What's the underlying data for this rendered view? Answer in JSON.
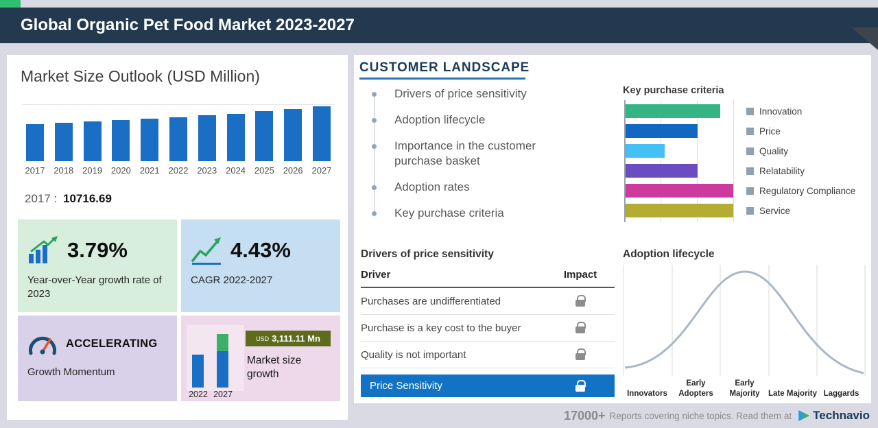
{
  "header": {
    "title": "Global Organic Pet Food Market 2023-2027"
  },
  "market_size": {
    "title": "Market Size Outlook (USD Million)",
    "base_year_label": "2017 :",
    "base_year_value": "10716.69",
    "yoy": {
      "value": "3.79%",
      "label": "Year-over-Year growth rate of 2023"
    },
    "cagr": {
      "value": "4.43%",
      "label": "CAGR 2022-2027"
    },
    "momentum": {
      "value": "ACCELERATING",
      "label": "Growth Momentum"
    },
    "growth": {
      "currency": "USD",
      "amount": "3,111.11 Mn",
      "label": "Market size growth",
      "years": [
        "2022",
        "2027"
      ]
    }
  },
  "customer_landscape": {
    "title": "CUSTOMER LANDSCAPE",
    "items": [
      "Drivers of price sensitivity",
      "Adoption lifecycle",
      "Importance in the customer purchase basket",
      "Adoption rates",
      "Key purchase criteria"
    ]
  },
  "key_purchase_criteria": {
    "title": "Key purchase criteria"
  },
  "price_sensitivity": {
    "title": "Drivers of price sensitivity",
    "columns": {
      "driver": "Driver",
      "impact": "Impact"
    },
    "rows": [
      "Purchases are undifferentiated",
      "Purchase is a key cost to the buyer",
      "Quality is not important"
    ],
    "highlight_label": "Price Sensitivity"
  },
  "adoption_lifecycle": {
    "title": "Adoption lifecycle"
  },
  "footer": {
    "count": "17000+",
    "text": "Reports covering niche topics. Read them at",
    "brand": "Technavio"
  },
  "colors": {
    "accent_green": "#2fbf71",
    "header_bg": "#22394f",
    "bar_blue": "#1a6fc4",
    "highlight_blue": "#1273c4",
    "badge_olive": "#5d6b1b"
  },
  "chart_data": [
    {
      "type": "bar",
      "title": "Market Size Outlook (USD Million)",
      "ylabel": "USD Million",
      "categories": [
        "2017",
        "2018",
        "2019",
        "2020",
        "2021",
        "2022",
        "2023",
        "2024",
        "2025",
        "2026",
        "2027"
      ],
      "values": [
        10716.69,
        11150,
        11590,
        12010,
        12440,
        12855.93,
        13343.17,
        13890,
        14520,
        15230,
        15967.04
      ],
      "labeled_point": {
        "year": "2017",
        "value": 10716.69
      },
      "values_estimated_after_2017": true,
      "grid": false
    },
    {
      "type": "bar",
      "orientation": "horizontal",
      "title": "Key purchase criteria",
      "categories": [
        "Innovation",
        "Price",
        "Quality",
        "Relatability",
        "Regulatory Compliance",
        "Service"
      ],
      "values": [
        88,
        67,
        36,
        67,
        100,
        100
      ],
      "unit": "relative (0-100, estimated from bar lengths)",
      "colors": [
        "#35b585",
        "#1167c1",
        "#45c0f5",
        "#6a4ec1",
        "#cd3a9d",
        "#b5ad33"
      ],
      "legend_position": "right"
    },
    {
      "type": "bar",
      "title": "Market size growth",
      "categories": [
        "2022",
        "2027"
      ],
      "values": [
        12855.93,
        15967.04
      ],
      "annotation": "USD 3,111.11 Mn"
    },
    {
      "type": "line",
      "title": "Adoption lifecycle",
      "shape": "bell curve",
      "categories": [
        "Innovators",
        "Early Adopters",
        "Early Majority",
        "Late Majority",
        "Laggards"
      ],
      "grid": true
    }
  ]
}
